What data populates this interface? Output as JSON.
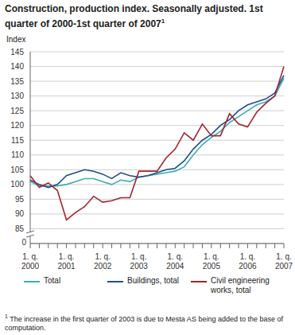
{
  "chart_data": {
    "type": "line",
    "title": "Construction, production index. Seasonally adjusted. 1st quarter of 2000-1st quarter of 2007",
    "title_superscript": "1",
    "y_label": "Index",
    "annotations": [
      "0"
    ],
    "footnote_mark": "1",
    "footnote": "The increase in the first quarter of 2003 is due to Mesta AS being added to the base of computation.",
    "categories": [
      "1. q. 2000",
      null,
      null,
      null,
      "1. q. 2001",
      null,
      null,
      null,
      "1. q. 2002",
      null,
      null,
      null,
      "1. q. 2003",
      null,
      null,
      null,
      "1. q. 2004",
      null,
      null,
      null,
      "1. q. 2005",
      null,
      null,
      null,
      "1. q. 2006",
      null,
      null,
      null,
      "1. q. 2007"
    ],
    "series": [
      {
        "name": "Total",
        "color": "#3aaeb8",
        "values": [
          101,
          99.5,
          99.5,
          99.5,
          100,
          101,
          102,
          102,
          101,
          100,
          101.5,
          101,
          102.5,
          103,
          103.5,
          104,
          104.5,
          106,
          110,
          113.5,
          116,
          118,
          121,
          123,
          125,
          127,
          128,
          130,
          136
        ]
      },
      {
        "name": "Buildings, total",
        "color": "#1f4e8c",
        "values": [
          101.5,
          100,
          99,
          100,
          103,
          104,
          105,
          104.5,
          103.5,
          102,
          104,
          103,
          102.5,
          103,
          104,
          105,
          105.5,
          108,
          112,
          115,
          117,
          120,
          122,
          125,
          127,
          128,
          129,
          131,
          137
        ]
      },
      {
        "name": "Civil engineering works, total",
        "color": "#a8232c",
        "values": [
          103,
          99,
          100.5,
          98,
          88,
          90.5,
          92.5,
          96,
          94,
          94.5,
          95.5,
          95.5,
          104.5,
          104.5,
          104.5,
          109,
          112,
          117.5,
          115,
          120.5,
          116.5,
          116.5,
          124,
          120.5,
          119.5,
          124.5,
          127.5,
          130,
          140
        ]
      }
    ],
    "ylim": [
      80,
      145
    ],
    "yticks": [
      85,
      90,
      95,
      100,
      105,
      110,
      115,
      120,
      125,
      130,
      135,
      140,
      145
    ],
    "grid": true
  }
}
